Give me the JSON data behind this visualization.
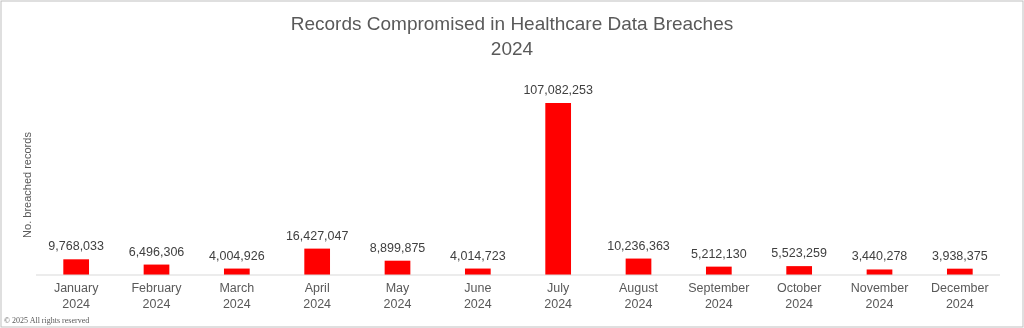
{
  "chart_data": {
    "type": "bar",
    "title": "Records Compromised in Healthcare Data Breaches",
    "subtitle": "2024",
    "ylabel": "No. breached records",
    "categories": [
      "January 2024",
      "February 2024",
      "March 2024",
      "April 2024",
      "May 2024",
      "June 2024",
      "July 2024",
      "August 2024",
      "September 2024",
      "October 2024",
      "November 2024",
      "December 2024"
    ],
    "values": [
      9768033,
      6496306,
      4004926,
      16427047,
      8899875,
      4014723,
      107082253,
      10236363,
      5212130,
      5523259,
      3440278,
      3938375
    ],
    "value_labels": [
      "9,768,033",
      "6,496,306",
      "4,004,926",
      "16,427,047",
      "8,899,875",
      "4,014,723",
      "107,082,253",
      "10,236,363",
      "5,212,130",
      "5,523,259",
      "3,440,278",
      "3,938,375"
    ],
    "color": "#ff0000",
    "annotations": [
      "© 2025 All rights reserved"
    ]
  }
}
